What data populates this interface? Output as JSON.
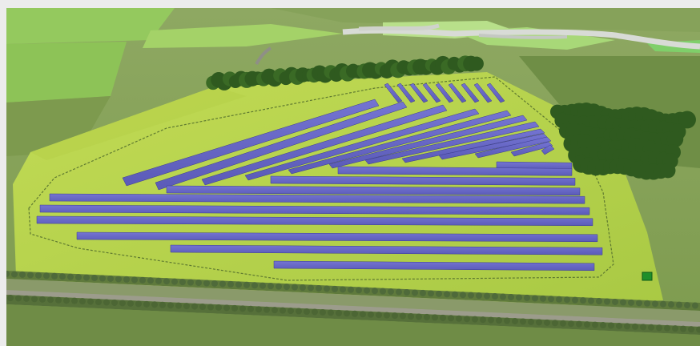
{
  "image": {
    "subject": "solar-farm-aerial-rendering",
    "colors": {
      "background": "#ececec",
      "site_grass": "#b8d44a",
      "field_dark": "#7f9a4f",
      "field_light": "#93c95a",
      "panel": "#6868c8",
      "panel_edge": "#3c3c90",
      "tree": "#2f5a1f",
      "hedge": "#4f6a3a",
      "road": "#9c9c8c",
      "inverter_box": "#1f8f2a"
    }
  }
}
